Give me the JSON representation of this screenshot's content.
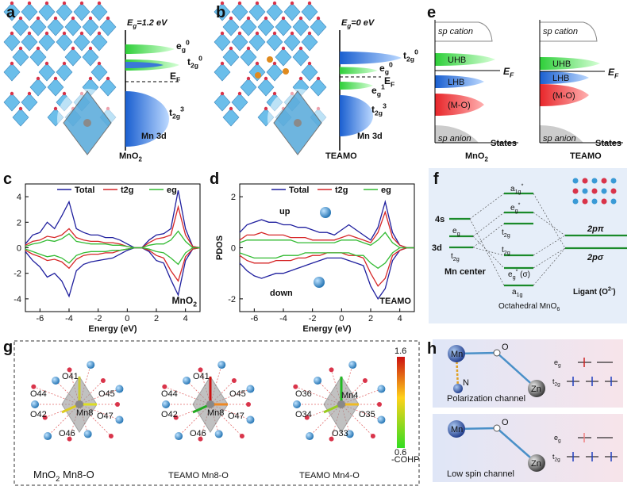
{
  "chart_data": [
    {
      "type": "line",
      "panel_label": "c",
      "x": [
        -7,
        -6.5,
        -6,
        -5.5,
        -5,
        -4.5,
        -4,
        -3.5,
        -3,
        -2.5,
        -2,
        -1.5,
        -1,
        -0.5,
        0,
        0.5,
        1,
        1.5,
        2,
        2.5,
        3,
        3.5,
        4,
        4.5,
        5
      ],
      "xlim": [
        -7,
        5
      ],
      "xticks": [
        -6,
        -4,
        -2,
        0,
        2,
        4
      ],
      "ylim": [
        -5,
        5
      ],
      "yticks": [
        -4,
        -2,
        0,
        2,
        4
      ],
      "xlabel": "Energy (eV)",
      "annotations": [
        {
          "main": "MnO",
          "sub": "2"
        }
      ],
      "series": [
        {
          "name": "Total",
          "color": "#1f1f9e",
          "values": [
            0.3,
            1.0,
            1.2,
            2.0,
            1.5,
            2.5,
            3.6,
            1.5,
            1.2,
            1.0,
            1.0,
            0.8,
            0.8,
            0.6,
            0.3,
            0,
            0,
            0.6,
            1.0,
            1.1,
            1.5,
            4.5,
            1.5,
            0.1,
            0
          ],
          "values_down": [
            -0.3,
            -1.0,
            -1.5,
            -2.3,
            -2.0,
            -2.6,
            -3.8,
            -1.8,
            -1.3,
            -1.1,
            -1.0,
            -0.9,
            -0.8,
            -0.5,
            -0.2,
            0,
            0,
            -0.3,
            -1.0,
            -1.2,
            -2.5,
            -3.7,
            -1.0,
            -0.1,
            0
          ]
        },
        {
          "name": "t2g",
          "color": "#d62728",
          "values": [
            0.2,
            0.5,
            0.6,
            0.9,
            0.8,
            1.0,
            1.5,
            0.8,
            0.6,
            0.5,
            0.5,
            0.4,
            0.4,
            0.3,
            0.1,
            0,
            0,
            0.4,
            0.7,
            0.8,
            1.0,
            3.2,
            1.0,
            0.1,
            0
          ],
          "values_down": [
            -0.2,
            -0.5,
            -0.7,
            -1.0,
            -0.9,
            -1.1,
            -1.6,
            -0.9,
            -0.6,
            -0.5,
            -0.5,
            -0.4,
            -0.4,
            -0.2,
            -0.1,
            0,
            0,
            -0.2,
            -0.6,
            -0.8,
            -1.8,
            -2.6,
            -0.7,
            -0.1,
            0
          ]
        },
        {
          "name": "eg",
          "color": "#33bb33",
          "values": [
            0.1,
            0.3,
            0.4,
            0.6,
            0.5,
            0.7,
            1.1,
            0.5,
            0.4,
            0.3,
            0.3,
            0.3,
            0.2,
            0.2,
            0.1,
            0,
            0,
            0.2,
            0.3,
            0.3,
            0.6,
            1.3,
            0.5,
            0,
            0
          ],
          "values_down": [
            -0.1,
            -0.3,
            -0.5,
            -0.7,
            -0.6,
            -0.8,
            -1.2,
            -0.6,
            -0.4,
            -0.3,
            -0.3,
            -0.3,
            -0.2,
            -0.2,
            -0.1,
            0,
            0,
            -0.1,
            -0.3,
            -0.4,
            -0.8,
            -1.3,
            -0.4,
            0,
            0
          ]
        }
      ]
    },
    {
      "type": "line",
      "panel_label": "d",
      "x": [
        -7,
        -6.5,
        -6,
        -5.5,
        -5,
        -4.5,
        -4,
        -3.5,
        -3,
        -2.5,
        -2,
        -1.5,
        -1,
        -0.5,
        0,
        0.5,
        1,
        1.5,
        2,
        2.5,
        3,
        3.5,
        4,
        4.5,
        5
      ],
      "xlim": [
        -7,
        5
      ],
      "xticks": [
        -6,
        -4,
        -2,
        0,
        2,
        4
      ],
      "ylim": [
        -2.5,
        2.5
      ],
      "yticks": [
        -2,
        0,
        2
      ],
      "xlabel": "Energy (eV)",
      "ylabel": "PDOS",
      "annotations": [
        "up",
        "down",
        "TEAMO"
      ],
      "series": [
        {
          "name": "Total",
          "color": "#1f1f9e",
          "values": [
            0.6,
            0.9,
            1.0,
            1.1,
            1.0,
            1.0,
            0.9,
            0.9,
            0.8,
            0.8,
            0.7,
            0.6,
            0.6,
            0.5,
            0.7,
            0.9,
            0.7,
            0.5,
            0.3,
            0.8,
            1.8,
            0.6,
            0.1,
            0,
            0
          ],
          "values_down": [
            -0.6,
            -0.9,
            -1.1,
            -1.2,
            -1.1,
            -1.0,
            -1.0,
            -0.9,
            -0.8,
            -0.7,
            -0.6,
            -0.5,
            -0.4,
            -0.4,
            -0.4,
            -0.5,
            -0.6,
            -0.7,
            -1.5,
            -2.0,
            -1.6,
            -0.5,
            -0.1,
            0,
            0
          ]
        },
        {
          "name": "t2g",
          "color": "#d62728",
          "values": [
            0.3,
            0.5,
            0.5,
            0.6,
            0.5,
            0.5,
            0.5,
            0.4,
            0.4,
            0.4,
            0.3,
            0.3,
            0.3,
            0.3,
            0.4,
            0.5,
            0.4,
            0.3,
            0.2,
            0.6,
            1.4,
            0.4,
            0.1,
            0,
            0
          ],
          "values_down": [
            -0.3,
            -0.5,
            -0.6,
            -0.6,
            -0.6,
            -0.5,
            -0.5,
            -0.5,
            -0.4,
            -0.4,
            -0.3,
            -0.3,
            -0.2,
            -0.2,
            -0.2,
            -0.3,
            -0.3,
            -0.4,
            -1.0,
            -1.5,
            -1.2,
            -0.3,
            -0.1,
            0,
            0
          ]
        },
        {
          "name": "eg",
          "color": "#33bb33",
          "values": [
            0.2,
            0.3,
            0.3,
            0.3,
            0.3,
            0.3,
            0.3,
            0.3,
            0.2,
            0.2,
            0.2,
            0.2,
            0.2,
            0.2,
            0.3,
            0.3,
            0.3,
            0.2,
            0.1,
            0.3,
            0.6,
            0.2,
            0,
            0,
            0
          ],
          "values_down": [
            -0.2,
            -0.3,
            -0.4,
            -0.4,
            -0.4,
            -0.4,
            -0.3,
            -0.3,
            -0.3,
            -0.2,
            -0.2,
            -0.2,
            -0.2,
            -0.2,
            -0.2,
            -0.2,
            -0.3,
            -0.3,
            -0.6,
            -0.8,
            -0.6,
            -0.2,
            0,
            0,
            0
          ]
        }
      ]
    }
  ],
  "panels": {
    "a": {
      "label": "a",
      "gap": {
        "main": "E",
        "sub": "g",
        "rest": "=1.2 eV"
      },
      "levels": [
        {
          "main": "e",
          "sub": "g",
          "sup": "0"
        },
        {
          "main": "t",
          "sub": "2g",
          "sup": "0"
        },
        {
          "main": "E",
          "sub": "F"
        },
        {
          "main": "t",
          "sub": "2g",
          "sup": "3"
        }
      ],
      "orbital": "Mn 3d",
      "material": {
        "main": "MnO",
        "sub": "2"
      }
    },
    "b": {
      "label": "b",
      "gap": {
        "main": "E",
        "sub": "g",
        "rest": "=0 eV"
      },
      "levels": [
        {
          "main": "t",
          "sub": "2g",
          "sup": "0"
        },
        {
          "main": "e",
          "sub": "g",
          "sup": "0"
        },
        {
          "main": "E",
          "sub": "F"
        },
        {
          "main": "e",
          "sub": "g",
          "sup": "1"
        },
        {
          "main": "t",
          "sub": "2g",
          "sup": "3"
        }
      ],
      "orbital": "Mn 3d",
      "material": "TEAMO"
    },
    "e": {
      "label": "e",
      "diagrams": [
        {
          "top": "sp cation",
          "bands": [
            "UHB",
            "LHB",
            "(M-O)"
          ],
          "bottom": "sp anion",
          "axis": "States",
          "fermi": {
            "main": "E",
            "sub": "F"
          },
          "material": {
            "main": "MnO",
            "sub": "2"
          }
        },
        {
          "top": "sp cation",
          "bands": [
            "UHB",
            "LHB",
            "(M-O)"
          ],
          "bottom": "sp anion",
          "axis": "States",
          "fermi": {
            "main": "E",
            "sub": "F"
          },
          "material": "TEAMO"
        }
      ]
    },
    "f": {
      "label": "f",
      "metal": [
        "4s",
        "3d"
      ],
      "metal_levels": [
        {
          "main": "e",
          "sub": "g"
        },
        {
          "main": "t",
          "sub": "2g"
        }
      ],
      "mo_levels": [
        {
          "main": "a",
          "sub": "1g",
          "sup": "*"
        },
        {
          "main": "e",
          "sub": "g",
          "sup": "*"
        },
        {
          "main": "t",
          "sub": "2g"
        },
        {
          "main": "t",
          "sub": "2g"
        },
        {
          "main": "e",
          "sub": "g",
          "sup": "*",
          "rest": " (σ)"
        },
        {
          "main": "a",
          "sub": "1g"
        }
      ],
      "ligand_levels": [
        "2pπ",
        "2pσ"
      ],
      "center": "Mn center",
      "ligand": {
        "main": "Ligant (O",
        "sup": "2-",
        "rest": ")"
      },
      "caption": {
        "main": "Octahedral MnO",
        "sub": "6"
      }
    },
    "g": {
      "label": "g",
      "structures": [
        {
          "atoms": [
            "O41",
            "O44",
            "O45",
            "Mn8",
            "O42",
            "O47",
            "O46"
          ],
          "caption": {
            "main": "MnO",
            "sub": "2",
            "rest": "  Mn8-O"
          }
        },
        {
          "atoms": [
            "O41",
            "O44",
            "O45",
            "Mn8",
            "O42",
            "O47",
            "O46"
          ],
          "caption": "TEAMO  Mn8-O"
        },
        {
          "atoms": [
            "O36",
            "Mn4",
            "O34",
            "O35",
            "O33"
          ],
          "caption": "TEAMO  Mn4-O"
        }
      ],
      "colorbar": {
        "max": 1.6,
        "min": 0.6,
        "label": "-COHP"
      }
    },
    "h": {
      "label": "h",
      "channels": [
        {
          "atoms": [
            "Mn",
            "O",
            "N",
            "Zn"
          ],
          "levels": [
            {
              "main": "e",
              "sub": "g"
            },
            {
              "main": "t",
              "sub": "2g"
            }
          ],
          "name": "Polarization channel"
        },
        {
          "atoms": [
            "Mn",
            "O",
            "Zn"
          ],
          "levels": [
            {
              "main": "e",
              "sub": "g"
            },
            {
              "main": "t",
              "sub": "2g"
            }
          ],
          "name": "Low spin channel"
        }
      ]
    }
  }
}
